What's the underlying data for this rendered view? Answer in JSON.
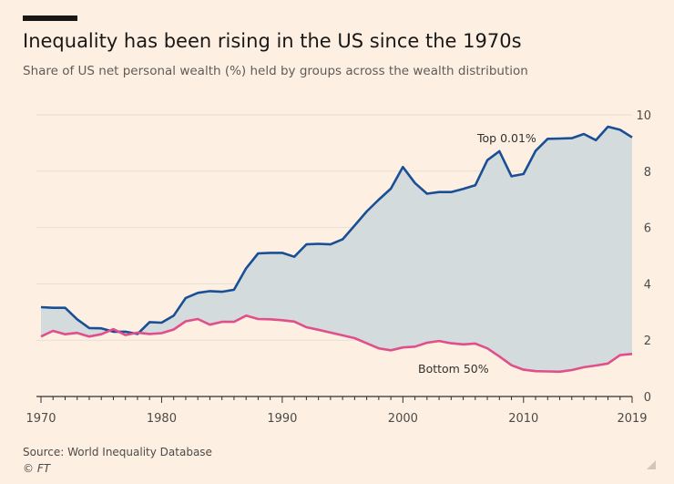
{
  "title": "Inequality has been rising in the US since the 1970s",
  "subtitle": "Share of US net personal wealth (%) held by groups across the wealth distribution",
  "source": "Source: World Inequality Database",
  "copyright": "© FT",
  "chart_data": {
    "type": "line",
    "x": [
      1970,
      1971,
      1972,
      1973,
      1974,
      1975,
      1976,
      1977,
      1978,
      1979,
      1980,
      1981,
      1982,
      1983,
      1984,
      1985,
      1986,
      1987,
      1988,
      1989,
      1990,
      1991,
      1992,
      1993,
      1994,
      1995,
      1996,
      1997,
      1998,
      1999,
      2000,
      2001,
      2002,
      2003,
      2004,
      2005,
      2006,
      2007,
      2008,
      2009,
      2010,
      2011,
      2012,
      2013,
      2014,
      2015,
      2016,
      2017,
      2018,
      2019
    ],
    "xticks": [
      "1970",
      "1980",
      "1990",
      "2000",
      "2010",
      "2019"
    ],
    "xtick_values": [
      1970,
      1980,
      1990,
      2000,
      2010,
      2019
    ],
    "yticks": [
      "0",
      "2",
      "4",
      "6",
      "8",
      "10"
    ],
    "ytick_values": [
      0,
      2,
      4,
      6,
      8,
      10
    ],
    "ylim": [
      0,
      10
    ],
    "xlim": [
      1970,
      2019
    ],
    "xlabel": "",
    "ylabel": "",
    "grid": true,
    "fill_between_series": true,
    "series": [
      {
        "name": "Top 0.01%",
        "color": "#1a4e95",
        "values": [
          3.17,
          3.15,
          3.15,
          2.74,
          2.43,
          2.42,
          2.3,
          2.3,
          2.22,
          2.64,
          2.62,
          2.87,
          3.5,
          3.68,
          3.74,
          3.72,
          3.79,
          4.55,
          5.08,
          5.1,
          5.1,
          4.96,
          5.4,
          5.42,
          5.4,
          5.58,
          6.07,
          6.57,
          6.99,
          7.38,
          8.15,
          7.58,
          7.2,
          7.26,
          7.26,
          7.37,
          7.5,
          8.39,
          8.71,
          7.82,
          7.9,
          8.72,
          9.15,
          9.16,
          9.17,
          9.32,
          9.1,
          9.58,
          9.47,
          9.2
        ]
      },
      {
        "name": "Bottom 50%",
        "color": "#e04f8a",
        "values": [
          2.13,
          2.33,
          2.21,
          2.26,
          2.13,
          2.21,
          2.39,
          2.18,
          2.27,
          2.22,
          2.25,
          2.38,
          2.67,
          2.75,
          2.55,
          2.65,
          2.65,
          2.87,
          2.75,
          2.74,
          2.71,
          2.66,
          2.46,
          2.37,
          2.27,
          2.17,
          2.07,
          1.89,
          1.71,
          1.64,
          1.74,
          1.77,
          1.91,
          1.97,
          1.89,
          1.85,
          1.88,
          1.71,
          1.42,
          1.11,
          0.95,
          0.9,
          0.89,
          0.88,
          0.94,
          1.04,
          1.1,
          1.17,
          1.47,
          1.51
        ]
      }
    ],
    "annotations": [
      {
        "text": "Top 0.01%",
        "series": 0
      },
      {
        "text": "Bottom 50%",
        "series": 1
      }
    ],
    "colors": {
      "fill": "#d4dbdd",
      "grid": "#e7ddd2",
      "axis": "#33302e",
      "tick_text": "#4d4a47"
    }
  }
}
